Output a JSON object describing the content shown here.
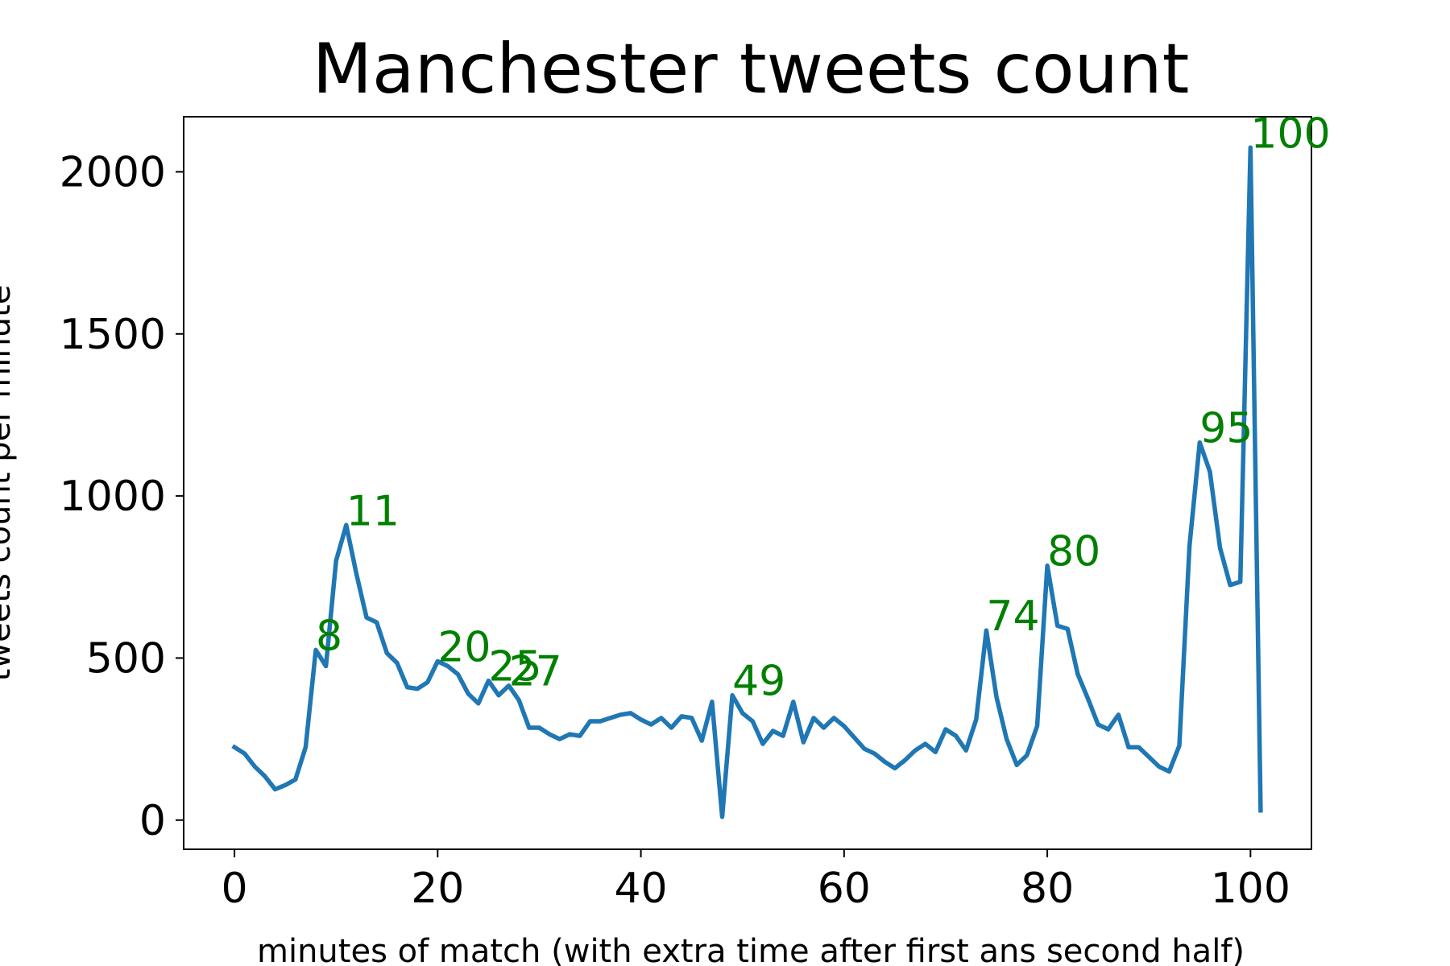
{
  "chart_data": {
    "type": "line",
    "title": "Manchester tweets count",
    "xlabel": "minutes of match (with extra time after first ans second half)",
    "ylabel": "tweets count per minute",
    "xlim": [
      -5,
      106
    ],
    "ylim": [
      -90,
      2170
    ],
    "x_ticks": [
      0,
      20,
      40,
      60,
      80,
      100
    ],
    "y_ticks": [
      0,
      500,
      1000,
      1500,
      2000
    ],
    "grid": false,
    "line_color": "#1f77b4",
    "annotation_color": "#008000",
    "series": [
      {
        "x": [
          0,
          1,
          2,
          3,
          4,
          5,
          6,
          7,
          8,
          9,
          10,
          11,
          12,
          13,
          14,
          15,
          16,
          17,
          18,
          19,
          20,
          21,
          22,
          23,
          24,
          25,
          26,
          27,
          28,
          29,
          30,
          31,
          32,
          33,
          34,
          35,
          36,
          37,
          38,
          39,
          40,
          41,
          42,
          43,
          44,
          45,
          46,
          47,
          48,
          49,
          50,
          51,
          52,
          53,
          54,
          55,
          56,
          57,
          58,
          59,
          60,
          61,
          62,
          63,
          64,
          65,
          66,
          67,
          68,
          69,
          70,
          71,
          72,
          73,
          74,
          75,
          76,
          77,
          78,
          79,
          80,
          81,
          82,
          83,
          84,
          85,
          86,
          87,
          88,
          89,
          90,
          91,
          92,
          93,
          94,
          95,
          96,
          97,
          98,
          99,
          100,
          101
        ],
        "y": [
          225,
          205,
          165,
          135,
          95,
          108,
          125,
          225,
          525,
          475,
          800,
          910,
          760,
          625,
          610,
          515,
          485,
          410,
          405,
          425,
          490,
          475,
          450,
          390,
          360,
          430,
          385,
          415,
          370,
          285,
          285,
          265,
          250,
          265,
          260,
          305,
          305,
          315,
          325,
          330,
          310,
          295,
          315,
          285,
          320,
          315,
          245,
          365,
          10,
          385,
          330,
          305,
          235,
          275,
          260,
          365,
          240,
          315,
          285,
          315,
          290,
          255,
          220,
          205,
          180,
          160,
          185,
          215,
          235,
          210,
          280,
          260,
          215,
          310,
          585,
          380,
          250,
          170,
          200,
          290,
          785,
          600,
          590,
          450,
          375,
          295,
          280,
          325,
          225,
          225,
          195,
          165,
          150,
          230,
          845,
          1165,
          1075,
          840,
          725,
          735,
          2075,
          30
        ]
      }
    ],
    "annotations": [
      {
        "label": "8",
        "x": 8,
        "y": 525
      },
      {
        "label": "11",
        "x": 11,
        "y": 910
      },
      {
        "label": "20",
        "x": 20,
        "y": 490
      },
      {
        "label": "25",
        "x": 25,
        "y": 430
      },
      {
        "label": "27",
        "x": 27,
        "y": 415
      },
      {
        "label": "49",
        "x": 49,
        "y": 385
      },
      {
        "label": "74",
        "x": 74,
        "y": 585
      },
      {
        "label": "80",
        "x": 80,
        "y": 785
      },
      {
        "label": "95",
        "x": 95,
        "y": 1165
      },
      {
        "label": "100",
        "x": 100,
        "y": 2075
      }
    ]
  }
}
